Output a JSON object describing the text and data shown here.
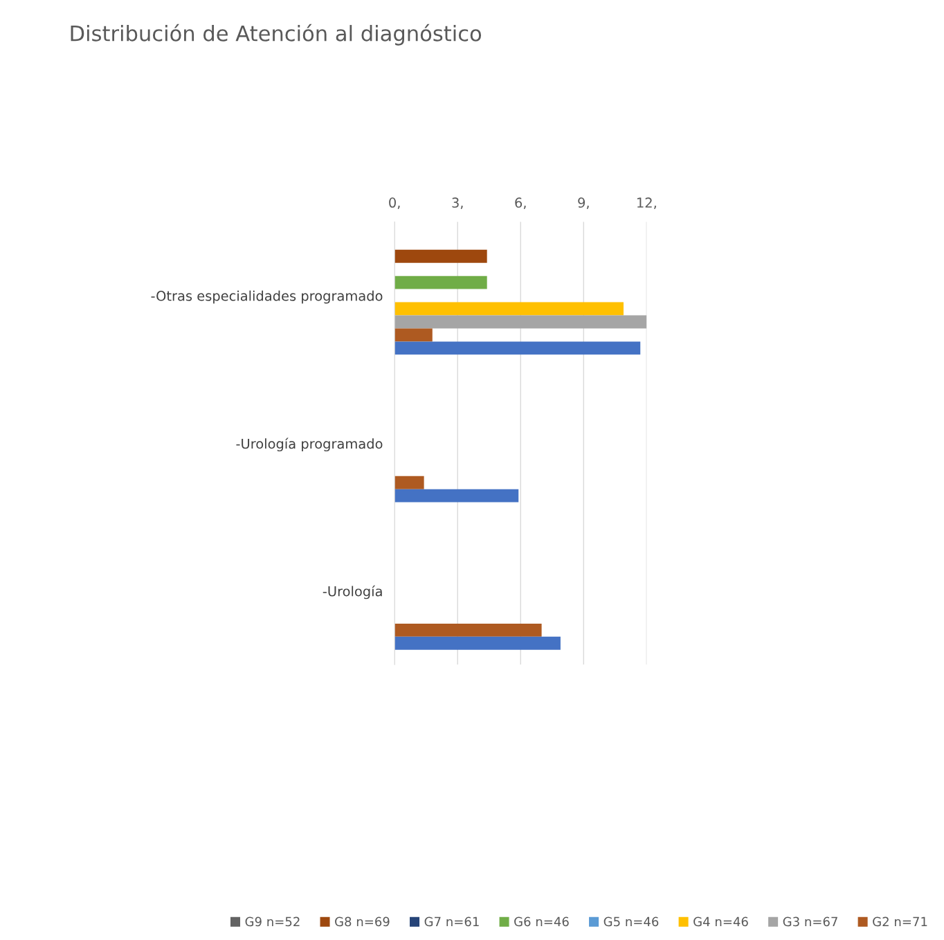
{
  "chart_data": {
    "type": "bar",
    "orientation": "horizontal",
    "title": "Distribución de Atención al diagnóstico",
    "categories": [
      "-Otras especialidades programado",
      "-Urología programado",
      "-Urología"
    ],
    "series": [
      {
        "name": "G9 n=52",
        "color": "#636363",
        "values": [
          0,
          0,
          0
        ]
      },
      {
        "name": "G8 n=69",
        "color": "#9e480e",
        "values": [
          4.4,
          0,
          0
        ]
      },
      {
        "name": "G7 n=61",
        "color": "#264478",
        "values": [
          0,
          0,
          0
        ]
      },
      {
        "name": "G6 n=46",
        "color": "#70ad47",
        "values": [
          4.4,
          0,
          0
        ]
      },
      {
        "name": "G5 n=46",
        "color": "#5b9bd5",
        "values": [
          0,
          0,
          0
        ]
      },
      {
        "name": "G4 n=46",
        "color": "#ffc000",
        "values": [
          10.9,
          0,
          0
        ]
      },
      {
        "name": "G3 n=67",
        "color": "#a5a5a5",
        "values": [
          12,
          0,
          0
        ]
      },
      {
        "name": "G2 n=71",
        "color": "#ae5a21",
        "values": [
          1.8,
          1.4,
          7.0
        ]
      },
      {
        "color": "#4472c4",
        "values": [
          11.7,
          5.9,
          7.9
        ]
      }
    ],
    "xlim": [
      0,
      12
    ],
    "xticks": [
      {
        "value": 0,
        "label": "0,"
      },
      {
        "value": 3,
        "label": "3,"
      },
      {
        "value": 6,
        "label": "6,"
      },
      {
        "value": 9,
        "label": "9,"
      },
      {
        "value": 12,
        "label": "12,"
      }
    ],
    "grid": "x",
    "legend": "bottom"
  }
}
